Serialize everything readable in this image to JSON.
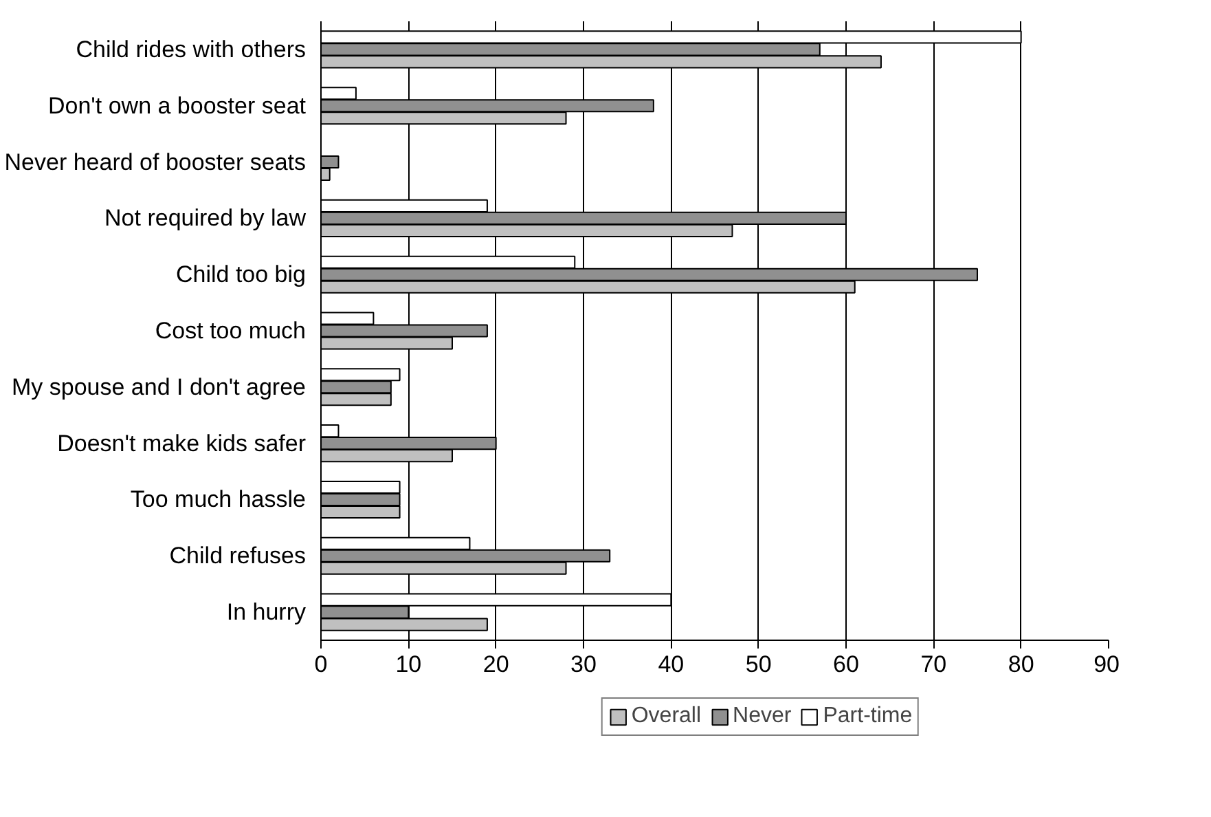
{
  "chart_data": {
    "type": "bar",
    "orientation": "horizontal",
    "categories": [
      "Child rides with others",
      "Don't own a booster seat",
      "Never heard of booster seats",
      "Not required by law",
      "Child too big",
      "Cost too much",
      "My spouse and I don't agree",
      "Doesn't make kids safer",
      "Too much hassle",
      "Child refuses",
      "In hurry"
    ],
    "series": [
      {
        "name": "Overall",
        "color": "#c0c0c0",
        "values": [
          64,
          28,
          1,
          47,
          61,
          15,
          8,
          15,
          9,
          28,
          19
        ]
      },
      {
        "name": "Never",
        "color": "#909090",
        "values": [
          57,
          38,
          2,
          60,
          75,
          19,
          8,
          20,
          9,
          33,
          10
        ]
      },
      {
        "name": "Part-time",
        "color": "#ffffff",
        "values": [
          80,
          4,
          0,
          19,
          29,
          6,
          9,
          2,
          9,
          17,
          40
        ]
      }
    ],
    "xlim": [
      0,
      90
    ],
    "xticks": [
      0,
      10,
      20,
      30,
      40,
      50,
      60,
      70,
      80,
      90
    ],
    "grid": "x",
    "legend": "bottom"
  }
}
